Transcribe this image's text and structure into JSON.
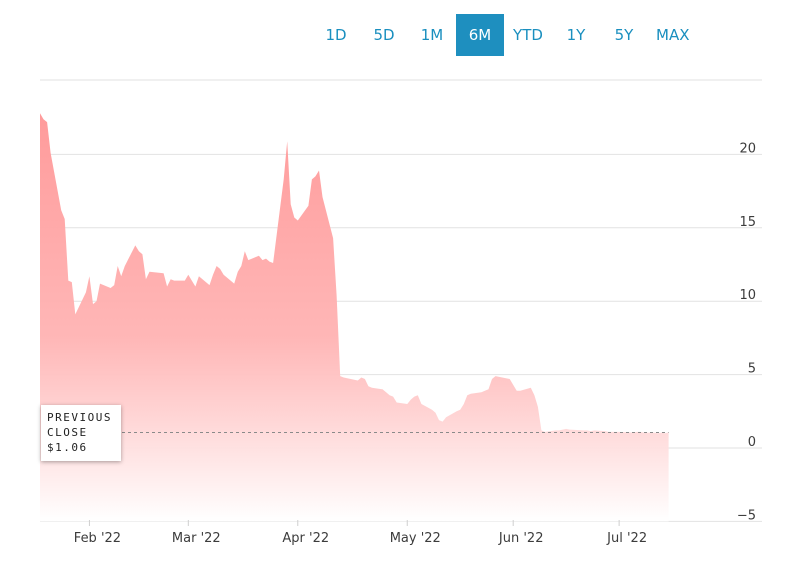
{
  "range_selector": {
    "options": [
      "1D",
      "5D",
      "1M",
      "6M",
      "YTD",
      "1Y",
      "5Y",
      "MAX"
    ],
    "selected": "6M"
  },
  "previous_close": {
    "line1": "PREVIOUS",
    "line2": "CLOSE",
    "value_label": "$1.06",
    "value": 1.06
  },
  "colors": {
    "accent": "#1e8fbf",
    "area_top": "#ff9b9b",
    "area_bottom": "#ffffff"
  },
  "chart_data": {
    "type": "area",
    "title": "",
    "xlabel": "",
    "ylabel": "",
    "ylim": [
      -5,
      25
    ],
    "yticks": [
      -5,
      0,
      5,
      10,
      15,
      20
    ],
    "xlim": [
      "2022-01-18",
      "2022-07-29"
    ],
    "xticks": [
      {
        "label": "Feb '22",
        "date": "2022-02-01"
      },
      {
        "label": "Mar '22",
        "date": "2022-03-01"
      },
      {
        "label": "Apr '22",
        "date": "2022-04-01"
      },
      {
        "label": "May '22",
        "date": "2022-05-02"
      },
      {
        "label": "Jun '22",
        "date": "2022-06-01"
      },
      {
        "label": "Jul '22",
        "date": "2022-07-01"
      }
    ],
    "grid": true,
    "axis_position": "right",
    "series": [
      {
        "points": [
          [
            "2022-01-18",
            22.8
          ],
          [
            "2022-01-19",
            22.4
          ],
          [
            "2022-01-20",
            22.2
          ],
          [
            "2022-01-21",
            20.1
          ],
          [
            "2022-01-24",
            16.2
          ],
          [
            "2022-01-25",
            15.6
          ],
          [
            "2022-01-26",
            11.4
          ],
          [
            "2022-01-27",
            11.3
          ],
          [
            "2022-01-28",
            9.1
          ],
          [
            "2022-01-31",
            10.6
          ],
          [
            "2022-02-01",
            11.7
          ],
          [
            "2022-02-02",
            9.8
          ],
          [
            "2022-02-03",
            10.0
          ],
          [
            "2022-02-04",
            11.2
          ],
          [
            "2022-02-07",
            10.9
          ],
          [
            "2022-02-08",
            11.1
          ],
          [
            "2022-02-09",
            12.4
          ],
          [
            "2022-02-10",
            11.7
          ],
          [
            "2022-02-11",
            12.4
          ],
          [
            "2022-02-14",
            13.8
          ],
          [
            "2022-02-15",
            13.4
          ],
          [
            "2022-02-16",
            13.2
          ],
          [
            "2022-02-17",
            11.5
          ],
          [
            "2022-02-18",
            12.0
          ],
          [
            "2022-02-22",
            11.9
          ],
          [
            "2022-02-23",
            11.0
          ],
          [
            "2022-02-24",
            11.5
          ],
          [
            "2022-02-25",
            11.4
          ],
          [
            "2022-02-28",
            11.4
          ],
          [
            "2022-03-01",
            11.8
          ],
          [
            "2022-03-02",
            11.4
          ],
          [
            "2022-03-03",
            11.0
          ],
          [
            "2022-03-04",
            11.7
          ],
          [
            "2022-03-07",
            11.1
          ],
          [
            "2022-03-08",
            11.8
          ],
          [
            "2022-03-09",
            12.4
          ],
          [
            "2022-03-10",
            12.2
          ],
          [
            "2022-03-11",
            11.8
          ],
          [
            "2022-03-14",
            11.2
          ],
          [
            "2022-03-15",
            12.0
          ],
          [
            "2022-03-16",
            12.4
          ],
          [
            "2022-03-17",
            13.4
          ],
          [
            "2022-03-18",
            12.8
          ],
          [
            "2022-03-21",
            13.1
          ],
          [
            "2022-03-22",
            12.8
          ],
          [
            "2022-03-23",
            12.9
          ],
          [
            "2022-03-24",
            12.7
          ],
          [
            "2022-03-25",
            12.6
          ],
          [
            "2022-03-28",
            18.3
          ],
          [
            "2022-03-29",
            20.9
          ],
          [
            "2022-03-30",
            16.6
          ],
          [
            "2022-03-31",
            15.7
          ],
          [
            "2022-04-01",
            15.5
          ],
          [
            "2022-04-04",
            16.5
          ],
          [
            "2022-04-05",
            18.3
          ],
          [
            "2022-04-06",
            18.5
          ],
          [
            "2022-04-07",
            18.9
          ],
          [
            "2022-04-08",
            17.1
          ],
          [
            "2022-04-11",
            14.3
          ],
          [
            "2022-04-12",
            10.4
          ],
          [
            "2022-04-13",
            4.9
          ],
          [
            "2022-04-14",
            4.8
          ],
          [
            "2022-04-18",
            4.6
          ],
          [
            "2022-04-19",
            4.8
          ],
          [
            "2022-04-20",
            4.7
          ],
          [
            "2022-04-21",
            4.2
          ],
          [
            "2022-04-22",
            4.1
          ],
          [
            "2022-04-25",
            4.0
          ],
          [
            "2022-04-26",
            3.8
          ],
          [
            "2022-04-27",
            3.6
          ],
          [
            "2022-04-28",
            3.5
          ],
          [
            "2022-04-29",
            3.1
          ],
          [
            "2022-05-02",
            3.0
          ],
          [
            "2022-05-03",
            3.3
          ],
          [
            "2022-05-04",
            3.5
          ],
          [
            "2022-05-05",
            3.6
          ],
          [
            "2022-05-06",
            3.0
          ],
          [
            "2022-05-09",
            2.6
          ],
          [
            "2022-05-10",
            2.4
          ],
          [
            "2022-05-11",
            1.9
          ],
          [
            "2022-05-12",
            1.8
          ],
          [
            "2022-05-13",
            2.1
          ],
          [
            "2022-05-16",
            2.5
          ],
          [
            "2022-05-17",
            2.6
          ],
          [
            "2022-05-18",
            3.0
          ],
          [
            "2022-05-19",
            3.6
          ],
          [
            "2022-05-20",
            3.7
          ],
          [
            "2022-05-23",
            3.8
          ],
          [
            "2022-05-24",
            3.9
          ],
          [
            "2022-05-25",
            4.0
          ],
          [
            "2022-05-26",
            4.7
          ],
          [
            "2022-05-27",
            4.9
          ],
          [
            "2022-05-31",
            4.7
          ],
          [
            "2022-06-01",
            4.3
          ],
          [
            "2022-06-02",
            3.9
          ],
          [
            "2022-06-03",
            3.9
          ],
          [
            "2022-06-06",
            4.1
          ],
          [
            "2022-06-07",
            3.6
          ],
          [
            "2022-06-08",
            2.8
          ],
          [
            "2022-06-09",
            1.2
          ],
          [
            "2022-06-10",
            1.1
          ],
          [
            "2022-06-13",
            1.2
          ],
          [
            "2022-06-14",
            1.2
          ],
          [
            "2022-06-15",
            1.25
          ],
          [
            "2022-06-16",
            1.3
          ],
          [
            "2022-06-17",
            1.25
          ],
          [
            "2022-06-21",
            1.2
          ],
          [
            "2022-06-22",
            1.2
          ],
          [
            "2022-06-23",
            1.15
          ],
          [
            "2022-06-24",
            1.2
          ],
          [
            "2022-06-27",
            1.15
          ],
          [
            "2022-06-28",
            1.1
          ],
          [
            "2022-06-29",
            1.1
          ],
          [
            "2022-06-30",
            1.1
          ],
          [
            "2022-07-01",
            1.1
          ],
          [
            "2022-07-05",
            1.05
          ],
          [
            "2022-07-06",
            1.1
          ],
          [
            "2022-07-07",
            1.1
          ],
          [
            "2022-07-08",
            1.05
          ],
          [
            "2022-07-11",
            1.05
          ],
          [
            "2022-07-12",
            1.0
          ],
          [
            "2022-07-13",
            1.05
          ],
          [
            "2022-07-14",
            1.0
          ],
          [
            "2022-07-15",
            1.06
          ]
        ]
      }
    ]
  }
}
